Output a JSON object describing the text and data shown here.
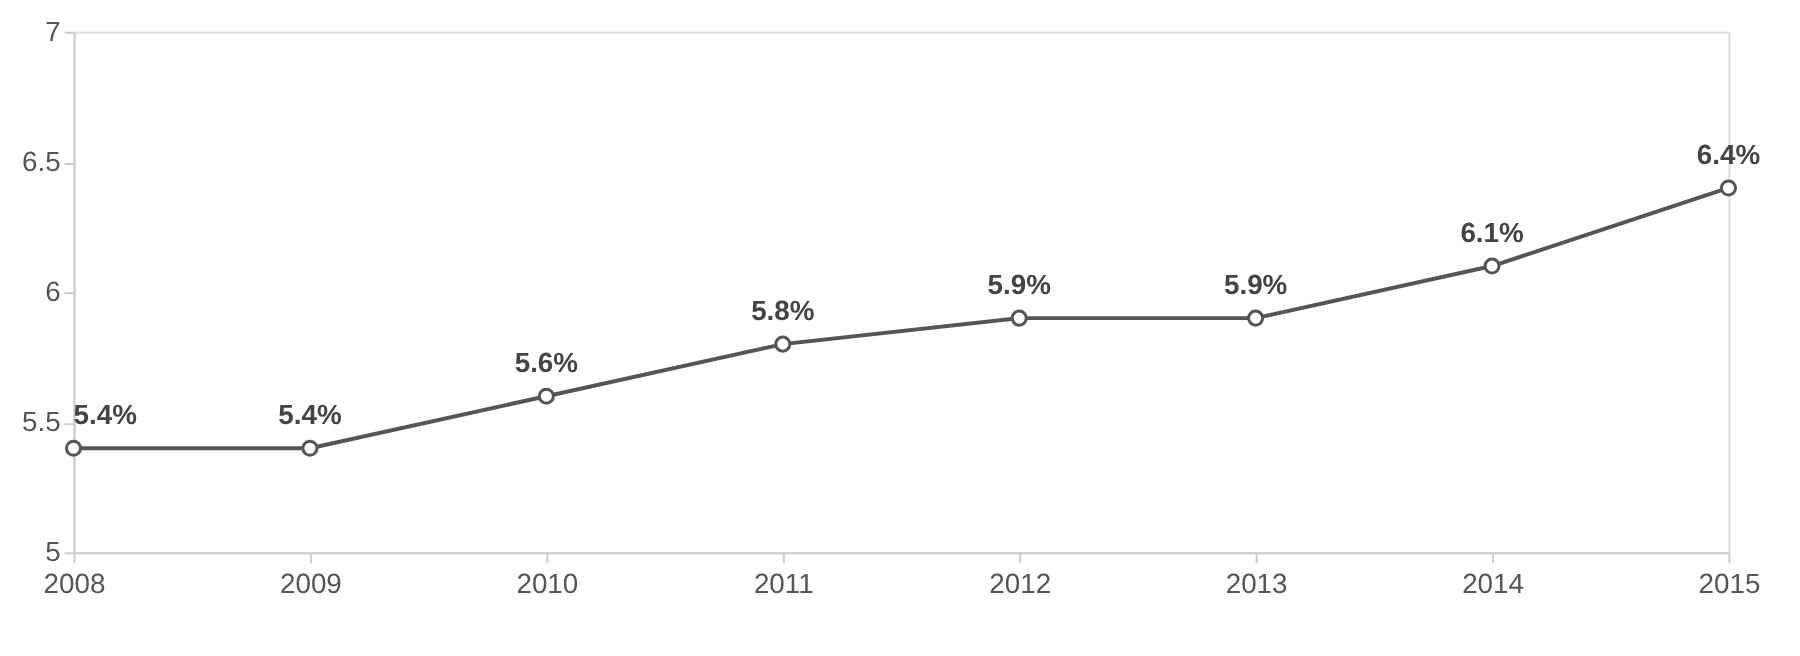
{
  "chart_data": {
    "type": "line",
    "categories": [
      "2008",
      "2009",
      "2010",
      "2011",
      "2012",
      "2013",
      "2014",
      "2015"
    ],
    "series": [
      {
        "color": "#555555",
        "values": [
          5.4,
          5.4,
          5.6,
          5.8,
          5.9,
          5.9,
          6.1,
          6.4
        ],
        "value_labels": [
          "5.4%",
          "5.4%",
          "5.6%",
          "5.8%",
          "5.9%",
          "5.9%",
          "6.1%",
          "6.4%"
        ]
      }
    ],
    "ylim": [
      5,
      7
    ],
    "yticks": [
      5,
      5.5,
      6,
      6.5,
      7
    ],
    "grid": false,
    "marker": "circle",
    "line_style": "solid"
  }
}
